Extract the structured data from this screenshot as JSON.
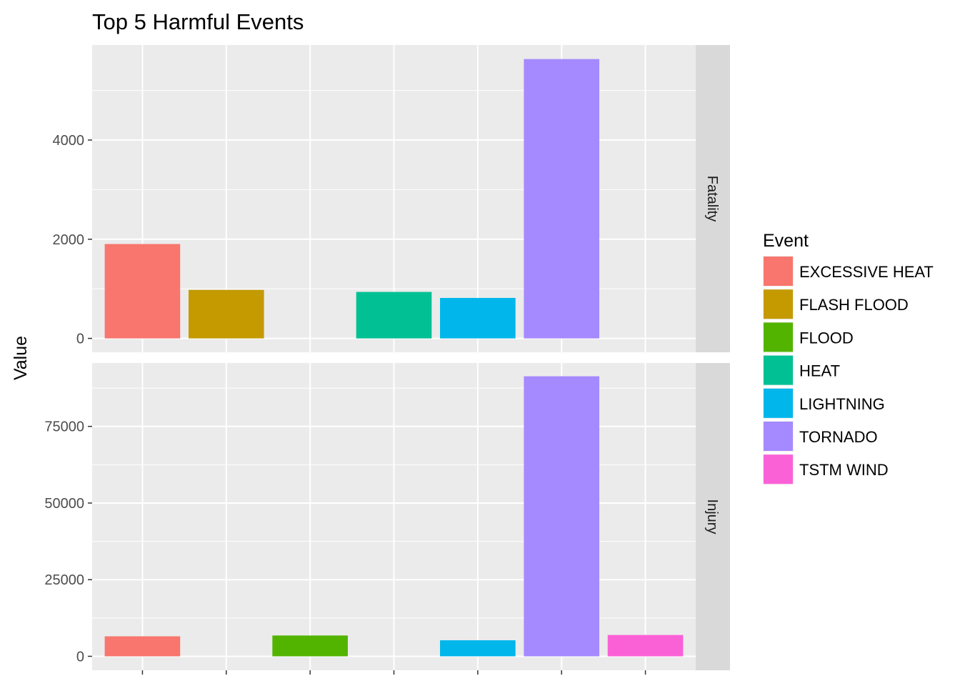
{
  "chart_data": {
    "type": "bar",
    "title": "Top 5 Harmful Events",
    "xlabel": "",
    "ylabel": "Value",
    "categories": [
      "EXCESSIVE HEAT",
      "FLASH FLOOD",
      "FLOOD",
      "HEAT",
      "LIGHTNING",
      "TORNADO",
      "TSTM WIND"
    ],
    "colors": {
      "EXCESSIVE HEAT": "#F8766D",
      "FLASH FLOOD": "#C49A00",
      "FLOOD": "#53B400",
      "HEAT": "#00C094",
      "LIGHTNING": "#00B6EB",
      "TORNADO": "#A58AFF",
      "TSTM WIND": "#FB61D7"
    },
    "panel_background": "#EBEBEB",
    "strip_background": "#D9D9D9",
    "grid": true,
    "legend": {
      "title": "Event",
      "position": "right",
      "items": [
        "EXCESSIVE HEAT",
        "FLASH FLOOD",
        "FLOOD",
        "HEAT",
        "LIGHTNING",
        "TORNADO",
        "TSTM WIND"
      ]
    },
    "facets": [
      {
        "label": "Fatality",
        "ylim": [
          -280,
          5916
        ],
        "yticks": [
          0,
          2000,
          4000
        ],
        "tick_labels": [
          "0",
          "2000",
          "4000"
        ],
        "values": [
          1903,
          978,
          null,
          937,
          816,
          5633,
          null
        ]
      },
      {
        "label": "Injury",
        "ylim": [
          -4556,
          95673
        ],
        "yticks": [
          0,
          25000,
          50000,
          75000
        ],
        "tick_labels": [
          "0",
          "25000",
          "50000",
          "75000"
        ],
        "values": [
          6525,
          null,
          6789,
          null,
          5230,
          91346,
          6957
        ]
      }
    ]
  }
}
